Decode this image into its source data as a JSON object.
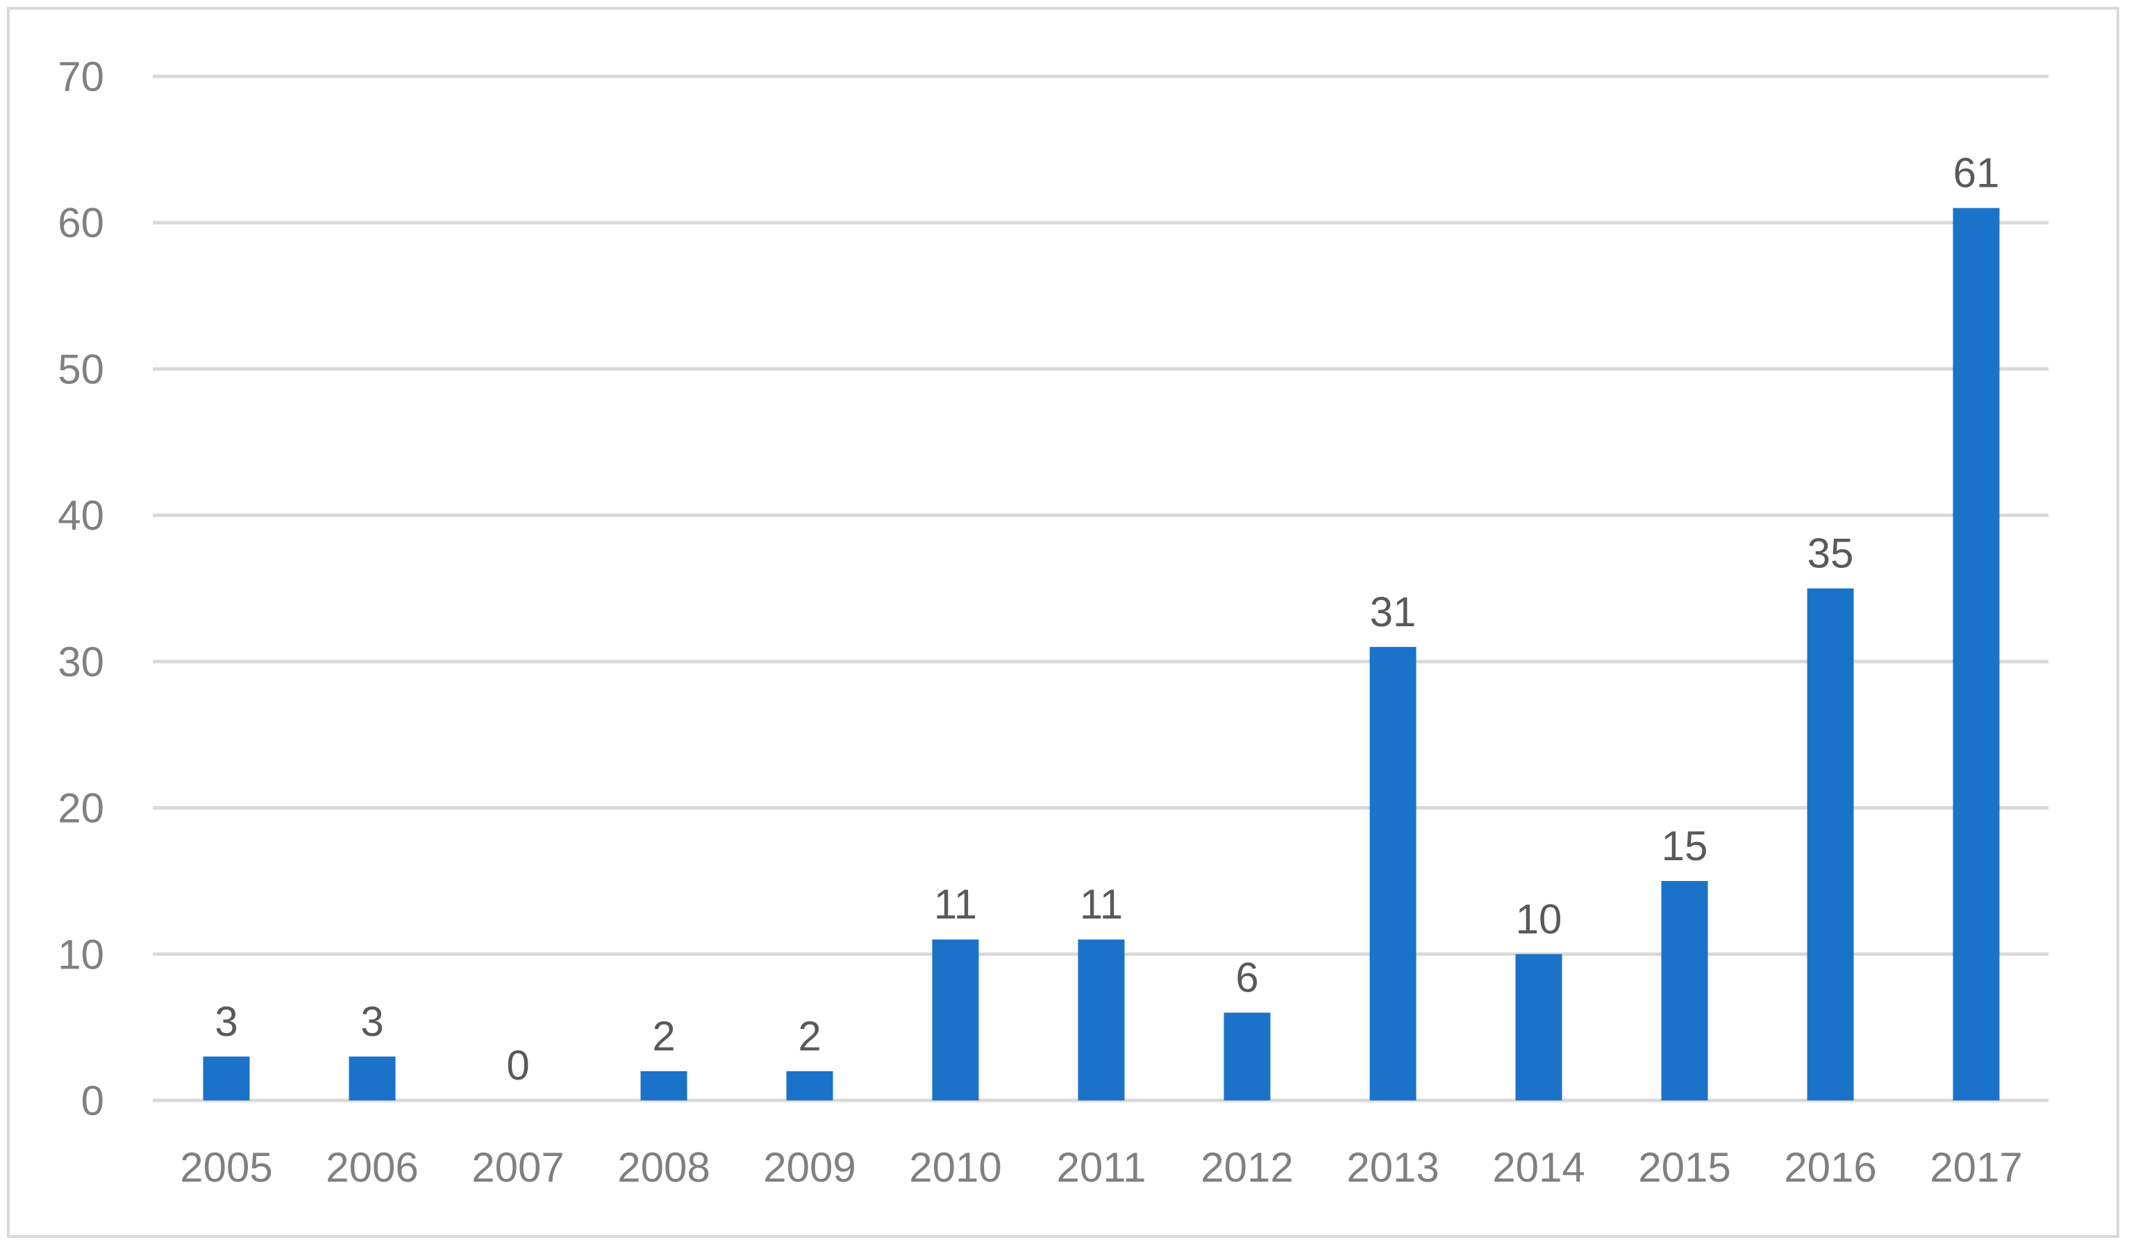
{
  "chart_data": {
    "type": "bar",
    "categories": [
      "2005",
      "2006",
      "2007",
      "2008",
      "2009",
      "2010",
      "2011",
      "2012",
      "2013",
      "2014",
      "2015",
      "2016",
      "2017"
    ],
    "values": [
      3,
      3,
      0,
      2,
      2,
      11,
      11,
      6,
      31,
      10,
      15,
      35,
      61
    ],
    "data_labels": [
      "3",
      "3",
      "0",
      "2",
      "2",
      "11",
      "11",
      "6",
      "31",
      "10",
      "15",
      "35",
      "61"
    ],
    "yticks": [
      "0",
      "10",
      "20",
      "30",
      "40",
      "50",
      "60",
      "70"
    ],
    "ylim": [
      0,
      70
    ],
    "grid": true,
    "legend": "none",
    "colors": {
      "bar": "#1a73c8",
      "grid": "#d9d9d9",
      "tick_text": "#808080",
      "label_text": "#595959"
    }
  }
}
